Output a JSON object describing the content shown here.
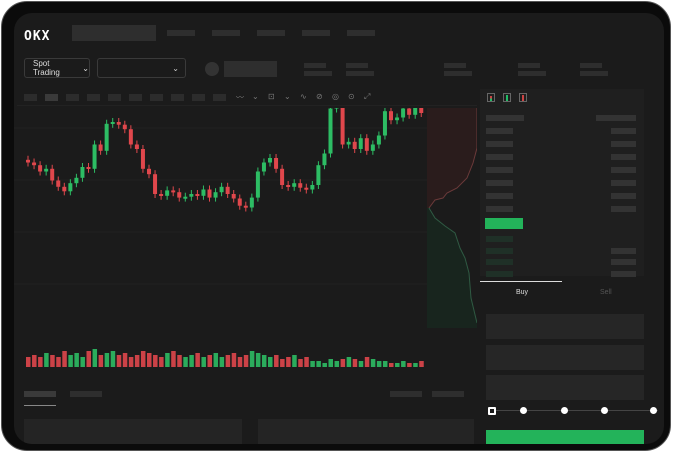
{
  "brand": {
    "logo": "OKX"
  },
  "toolbar": {
    "market_button": "Spot Trading",
    "pair_select": ""
  },
  "trade": {
    "tabs": [
      "Buy",
      "Sell"
    ],
    "active_tab": "Buy",
    "leverage_steps": 5,
    "selected_step": 0
  },
  "colors": {
    "up": "#2dbd64",
    "down": "#e0474c",
    "accent": "#23b35a",
    "background": "#1b1b1b"
  },
  "icons": [
    "chevron-down-icon",
    "orderbook-both-icon",
    "orderbook-bids-icon",
    "orderbook-asks-icon",
    "indicator-icon",
    "draw-icon"
  ],
  "chart_data": {
    "type": "candlestick",
    "open": [
      98,
      95,
      92,
      85,
      88,
      75,
      68,
      63,
      72,
      78,
      90,
      88,
      115,
      108,
      138,
      140,
      137,
      132,
      115,
      110,
      88,
      82,
      60,
      58,
      64,
      62,
      56,
      57,
      60,
      58,
      65,
      56,
      62,
      68,
      60,
      55,
      47,
      45,
      56,
      85,
      95,
      100,
      88,
      70,
      68,
      72,
      67,
      65,
      70,
      92,
      105,
      155,
      160,
      115,
      118,
      110,
      122,
      108,
      115,
      125,
      152,
      142,
      145,
      155,
      148,
      160
    ],
    "close": [
      95,
      92,
      85,
      88,
      75,
      68,
      63,
      72,
      78,
      90,
      88,
      115,
      108,
      138,
      140,
      137,
      132,
      115,
      110,
      88,
      82,
      60,
      58,
      64,
      62,
      56,
      57,
      60,
      58,
      65,
      56,
      62,
      68,
      60,
      55,
      47,
      45,
      56,
      85,
      95,
      100,
      88,
      70,
      68,
      72,
      67,
      65,
      70,
      92,
      105,
      155,
      160,
      115,
      118,
      110,
      122,
      108,
      115,
      125,
      152,
      142,
      145,
      155,
      148,
      160,
      150
    ],
    "volume": [
      5,
      6,
      5,
      7,
      6,
      5,
      8,
      6,
      7,
      5,
      8,
      9,
      6,
      7,
      8,
      6,
      7,
      5,
      6,
      8,
      7,
      6,
      5,
      7,
      8,
      6,
      5,
      6,
      7,
      5,
      6,
      7,
      5,
      6,
      7,
      5,
      6,
      8,
      7,
      6,
      5,
      6,
      4,
      5,
      6,
      4,
      5,
      3,
      3,
      2,
      4,
      3,
      4,
      5,
      4,
      3,
      5,
      4,
      3,
      3,
      2,
      2,
      3,
      2,
      2,
      3
    ]
  }
}
